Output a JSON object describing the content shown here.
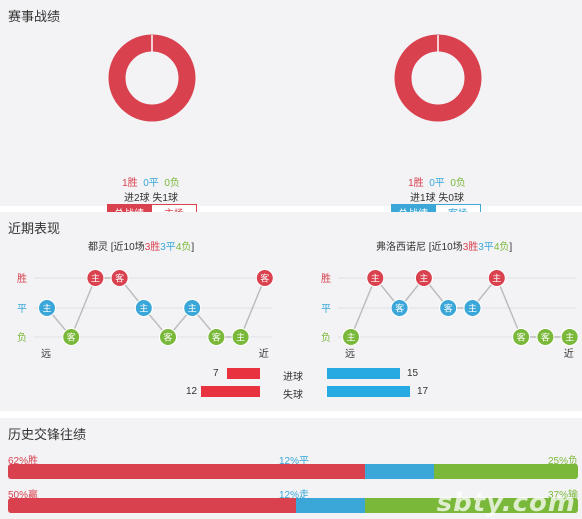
{
  "colors": {
    "win": "#d9414f",
    "draw": "#3aa7d8",
    "loss": "#7ab83a",
    "bar_blue": "#27a9e1"
  },
  "section1": {
    "title": "赛事战绩",
    "home": {
      "win": "1胜",
      "draw": "0平",
      "loss": "0负",
      "goals": "进2球  失1球",
      "tab_active": "总战绩",
      "tab_other": "主场",
      "win_rate": 1.0
    },
    "away": {
      "win": "1胜",
      "draw": "0平",
      "loss": "0负",
      "goals": "进1球  失0球",
      "tab_active": "总战绩",
      "tab_other": "客场",
      "win_rate": 1.0
    }
  },
  "section2": {
    "title": "近期表现",
    "y_labels": {
      "win": "胜",
      "draw": "平",
      "loss": "负"
    },
    "far": "远",
    "near": "近",
    "home": {
      "team": "都灵",
      "summary_pre": "[近10场",
      "w": "3胜",
      "d": "3平",
      "l": "4负",
      "summary_post": "]",
      "results": [
        {
          "r": "d",
          "label": "主"
        },
        {
          "r": "l",
          "label": "客"
        },
        {
          "r": "w",
          "label": "主"
        },
        {
          "r": "w",
          "label": "客"
        },
        {
          "r": "d",
          "label": "主"
        },
        {
          "r": "l",
          "label": "客"
        },
        {
          "r": "d",
          "label": "主"
        },
        {
          "r": "l",
          "label": "客"
        },
        {
          "r": "l",
          "label": "主"
        },
        {
          "r": "w",
          "label": "客"
        }
      ]
    },
    "away": {
      "team": "弗洛西诺尼",
      "summary_pre": "[近10场",
      "w": "3胜",
      "d": "3平",
      "l": "4负",
      "summary_post": "]",
      "results": [
        {
          "r": "l",
          "label": "主"
        },
        {
          "r": "w",
          "label": "主"
        },
        {
          "r": "d",
          "label": "客"
        },
        {
          "r": "w",
          "label": "主"
        },
        {
          "r": "d",
          "label": "客"
        },
        {
          "r": "d",
          "label": "主"
        },
        {
          "r": "w",
          "label": "主"
        },
        {
          "r": "l",
          "label": "客"
        },
        {
          "r": "l",
          "label": "客"
        },
        {
          "r": "l",
          "label": "主"
        }
      ]
    },
    "stats": {
      "goals_label": "进球",
      "conceded_label": "失球",
      "home_goals": "7",
      "home_conceded": "12",
      "away_goals": "15",
      "away_conceded": "17"
    }
  },
  "section3": {
    "title": "历史交锋往绩",
    "row1": {
      "left": "62%胜",
      "mid": "12%平",
      "right": "25%负",
      "values": [
        62,
        12,
        25
      ]
    },
    "row2": {
      "left": "50%赢",
      "mid": "12%走",
      "right": "37%输",
      "values": [
        50,
        12,
        37
      ]
    }
  },
  "watermark": "sbty.com"
}
